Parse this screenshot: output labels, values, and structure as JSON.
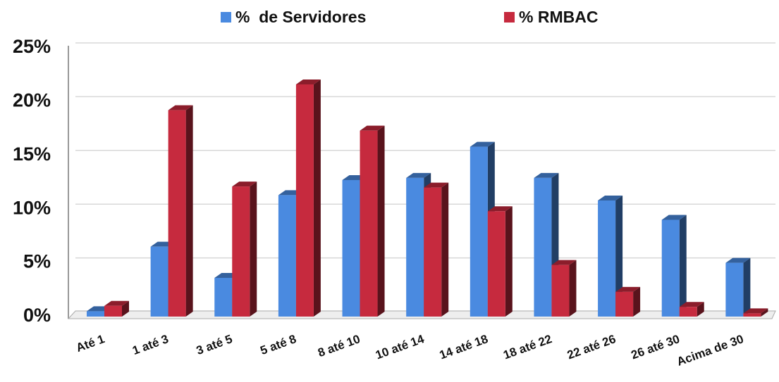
{
  "chart_data": {
    "type": "bar3d",
    "categories": [
      "Até 1",
      "1 até 3",
      "3 até 5",
      "5 até 8",
      "8 até 10",
      "10 até 14",
      "14 até 18",
      "18 até 22",
      "22 até 26",
      "26 até 30",
      "Acima de 30"
    ],
    "series": [
      {
        "name": "%  de Servidores",
        "color": "#4a8ae0",
        "values": [
          0.5,
          6.5,
          3.6,
          11.3,
          12.7,
          12.9,
          15.8,
          12.9,
          10.8,
          9.0,
          5.0
        ]
      },
      {
        "name": "% RMBAC",
        "color": "#c62a3e",
        "values": [
          1.0,
          19.2,
          12.1,
          21.6,
          17.3,
          12.0,
          9.8,
          4.8,
          2.3,
          0.9,
          0.3
        ]
      }
    ],
    "ylim": [
      0,
      25
    ],
    "yticks": [
      {
        "value": 0,
        "label": "0%"
      },
      {
        "value": 5,
        "label": "5%"
      },
      {
        "value": 10,
        "label": "10%"
      },
      {
        "value": 15,
        "label": "15%"
      },
      {
        "value": 20,
        "label": "20%"
      },
      {
        "value": 25,
        "label": "25%"
      }
    ],
    "grid": true,
    "legend": "top"
  }
}
